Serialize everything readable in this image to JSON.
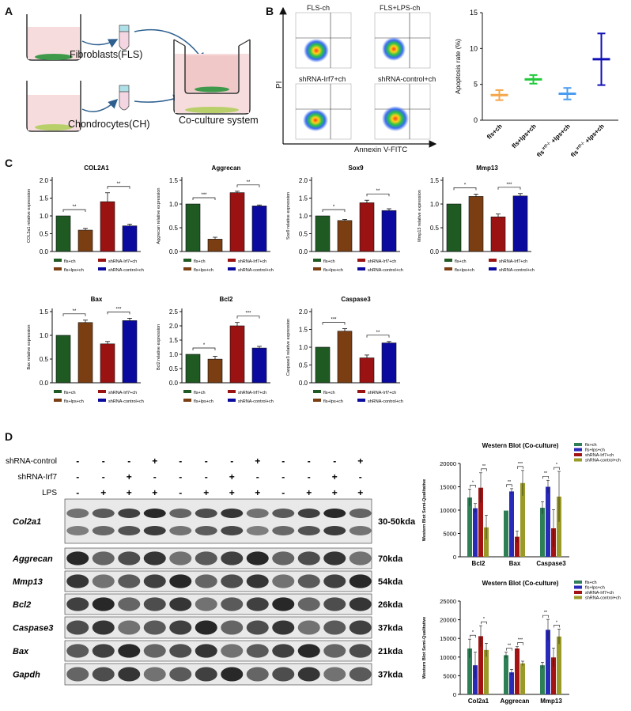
{
  "panels": {
    "A": "A",
    "B": "B",
    "C": "C",
    "D": "D"
  },
  "panelA": {
    "fibroblasts": "Fibroblasts(FLS)",
    "chondrocytes": "Chondrocytes(CH)",
    "coculture": "Co-culture system"
  },
  "panelB": {
    "flow_titles": [
      "FLS-ch",
      "FLS+LPS-ch",
      "shRNA-Irf7+ch",
      "shRNA-control+ch"
    ],
    "y_axis": "PI",
    "x_axis": "Annexin V-FITC"
  },
  "colors": {
    "green": "#1f5a23",
    "brown": "#7a3e12",
    "red": "#9b1212",
    "blue": "#0a0a9e",
    "orange": "#f4a64a",
    "lime": "#22c93a",
    "sky": "#4a9cf0",
    "navy": "#1010b8",
    "wb_green": "#2f7f56",
    "wb_blue": "#2a2ab8",
    "wb_red": "#a31313",
    "wb_olive": "#9a9a28"
  },
  "legend_c": [
    "fls+ch",
    "fls+lps+ch",
    "shRNA-Irf7+ch",
    "shRNA-control+ch"
  ],
  "legend_d": [
    "fls+ch",
    "fls+lps+ch",
    "shRNA-Irf7+ch",
    "shRNA-control+ch"
  ],
  "wb": {
    "row_labels": [
      "shRNA-control",
      "shRNA-Irf7",
      "LPS"
    ],
    "sign_rows": [
      [
        "-",
        "-",
        "-",
        "+",
        "-",
        "-",
        "-",
        "+",
        "-",
        "-",
        "-",
        "+"
      ],
      [
        "-",
        "-",
        "+",
        "-",
        "-",
        "-",
        "+",
        "-",
        "-",
        "-",
        "+",
        "-"
      ],
      [
        "-",
        "+",
        "+",
        "+",
        "-",
        "+",
        "+",
        "+",
        "-",
        "+",
        "+",
        "+"
      ]
    ],
    "proteins": [
      "Col2a1",
      "Aggrecan",
      "Mmp13",
      "Bcl2",
      "Caspase3",
      "Bax",
      "Gapdh"
    ],
    "sizes": [
      "30-50kda",
      "70kda",
      "54kda",
      "26kda",
      "37kda",
      "21kda",
      "37kda"
    ]
  },
  "chart_data": [
    {
      "type": "scatter",
      "categories": [
        "fls+ch",
        "fls+lps+ch",
        "fls Irf7-/- +lps+ch",
        "fls Irf7-/- +lps+ch"
      ],
      "tick_labels": [
        "fls+ch",
        "fls+lps+ch",
        "fls",
        "+lps+ch",
        "fls",
        "+lps+ch"
      ],
      "tick_sup": [
        "Irf7-/-",
        "Irf7-/-"
      ],
      "values": [
        3.5,
        5.7,
        3.7,
        8.5
      ],
      "errors": [
        0.7,
        0.6,
        0.8,
        3.6
      ],
      "ylabel": "Apoptosis rate (%)",
      "ylim": [
        0,
        15
      ],
      "yticks": [
        "0",
        "5",
        "10",
        "15"
      ]
    },
    {
      "type": "bar",
      "title": "COL2A1",
      "ylabel": "COL2a1 relative expression",
      "ylim": [
        0,
        2
      ],
      "yticks": [
        "0.0",
        "0.5",
        "1.0",
        "1.5",
        "2.0"
      ],
      "categories": [
        "fls+ch",
        "fls+lps+ch",
        "shRNA-Irf7+ch",
        "shRNA-control+ch"
      ],
      "values": [
        1.0,
        0.6,
        1.4,
        0.72
      ],
      "errors": [
        0,
        0.05,
        0.25,
        0.05
      ],
      "sig": [
        "**",
        "**"
      ]
    },
    {
      "type": "bar",
      "title": "Aggrecan",
      "ylabel": "Aggrecan relative expression",
      "ylim": [
        0,
        1.5
      ],
      "yticks": [
        "0.0",
        "0.5",
        "1.0",
        "1.5"
      ],
      "categories": [
        "fls+ch",
        "fls+lps+ch",
        "shRNA-Irf7+ch",
        "shRNA-control+ch"
      ],
      "values": [
        1.0,
        0.26,
        1.24,
        0.96
      ],
      "errors": [
        0,
        0.04,
        0.03,
        0.02
      ],
      "sig": [
        "***",
        "**"
      ]
    },
    {
      "type": "bar",
      "title": "Sox9",
      "ylabel": "Sox9 relative expression",
      "ylim": [
        0,
        2
      ],
      "yticks": [
        "0.0",
        "0.5",
        "1.0",
        "1.5",
        "2.0"
      ],
      "categories": [
        "fls+ch",
        "fls+lps+ch",
        "shRNA-Irf7+ch",
        "shRNA-control+ch"
      ],
      "values": [
        1.0,
        0.87,
        1.37,
        1.15
      ],
      "errors": [
        0,
        0.03,
        0.07,
        0.05
      ],
      "sig": [
        "*",
        "**"
      ]
    },
    {
      "type": "bar",
      "title": "Mmp13",
      "ylabel": "Mmp13 relative expression",
      "ylim": [
        0,
        1.5
      ],
      "yticks": [
        "0.0",
        "0.5",
        "1.0",
        "1.5"
      ],
      "categories": [
        "fls+ch",
        "fls+lps+ch",
        "shRNA-Irf7+ch",
        "shRNA-control+ch"
      ],
      "values": [
        1.0,
        1.16,
        0.73,
        1.17
      ],
      "errors": [
        0,
        0.05,
        0.06,
        0.05
      ],
      "sig": [
        "*",
        "***"
      ]
    },
    {
      "type": "bar",
      "title": "Bax",
      "ylabel": "Bax relative expression",
      "ylim": [
        0,
        1.5
      ],
      "yticks": [
        "0.0",
        "0.5",
        "1.0",
        "1.5"
      ],
      "categories": [
        "fls+ch",
        "fls+lps+ch",
        "shRNA-Irf7+ch",
        "shRNA-control+ch"
      ],
      "values": [
        1.0,
        1.27,
        0.82,
        1.31
      ],
      "errors": [
        0,
        0.05,
        0.05,
        0.05
      ],
      "sig": [
        "**",
        "***"
      ]
    },
    {
      "type": "bar",
      "title": "Bcl2",
      "ylabel": "Bcl2 relative expression",
      "ylim": [
        0,
        2.5
      ],
      "yticks": [
        "0.0",
        "0.5",
        "1.0",
        "1.5",
        "2.0",
        "2.5"
      ],
      "categories": [
        "fls+ch",
        "fls+lps+ch",
        "shRNA-Irf7+ch",
        "shRNA-control+ch"
      ],
      "values": [
        1.0,
        0.83,
        2.0,
        1.22
      ],
      "errors": [
        0,
        0.1,
        0.12,
        0.06
      ],
      "sig": [
        "*",
        "***"
      ]
    },
    {
      "type": "bar",
      "title": "Caspase3",
      "ylabel": "Caspase3 relative expression",
      "ylim": [
        0,
        2
      ],
      "yticks": [
        "0.0",
        "0.5",
        "1.0",
        "1.5",
        "2.0"
      ],
      "categories": [
        "fls+ch",
        "fls+lps+ch",
        "shRNA-Irf7+ch",
        "shRNA-control+ch"
      ],
      "values": [
        1.0,
        1.45,
        0.7,
        1.12
      ],
      "errors": [
        0,
        0.07,
        0.08,
        0.04
      ],
      "sig": [
        "***",
        "**"
      ]
    },
    {
      "type": "bar",
      "title": "Western Blot (Co-culture)",
      "ylabel": "Western Blot Semi-Qualitative",
      "ylim": [
        0,
        20000
      ],
      "yticks": [
        "0",
        "5000",
        "10000",
        "15000",
        "20000"
      ],
      "categories": [
        "Bcl2",
        "Bax",
        "Caspase3"
      ],
      "series": [
        {
          "name": "fls+ch",
          "values": [
            12700,
            9900,
            10500
          ],
          "errors": [
            1800,
            0,
            1300
          ]
        },
        {
          "name": "fls+lps+ch",
          "values": [
            10400,
            14000,
            15000
          ],
          "errors": [
            1000,
            600,
            1400
          ]
        },
        {
          "name": "shRNA-Irf7+ch",
          "values": [
            14800,
            4300,
            6100
          ],
          "errors": [
            3200,
            1200,
            4000
          ]
        },
        {
          "name": "shRNA-control+ch",
          "values": [
            6300,
            15800,
            12900
          ],
          "errors": [
            2600,
            2700,
            5400
          ]
        }
      ],
      "sig": [
        [
          "*",
          "**"
        ],
        [
          "**",
          "***"
        ],
        [
          "**",
          "*"
        ]
      ]
    },
    {
      "type": "bar",
      "title": "Western Blot (Co-culture)",
      "ylabel": "Western Blot Semi-Qualitative",
      "ylim": [
        0,
        25000
      ],
      "yticks": [
        "0",
        "5000",
        "10000",
        "15000",
        "20000",
        "25000"
      ],
      "categories": [
        "Col2a1",
        "Aggrecan",
        "Mmp13"
      ],
      "series": [
        {
          "name": "fls+ch",
          "values": [
            12300,
            10500,
            7800
          ],
          "errors": [
            2500,
            800,
            800
          ]
        },
        {
          "name": "fls+lps+ch",
          "values": [
            7800,
            5900,
            17300
          ],
          "errors": [
            3500,
            800,
            2800
          ]
        },
        {
          "name": "shRNA-Irf7+ch",
          "values": [
            15600,
            12300,
            9900
          ],
          "errors": [
            2800,
            500,
            2500
          ]
        },
        {
          "name": "shRNA-control+ch",
          "values": [
            11900,
            8300,
            15500
          ],
          "errors": [
            1800,
            600,
            2000
          ]
        }
      ],
      "sig": [
        [
          "*",
          "*"
        ],
        [
          "**",
          "***"
        ],
        [
          "**",
          "*"
        ]
      ]
    }
  ]
}
